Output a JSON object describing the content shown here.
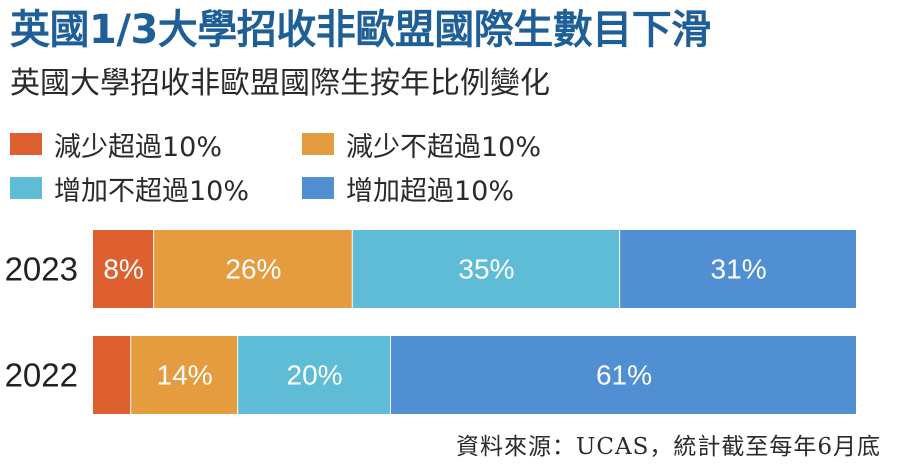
{
  "title": "英國1/3大學招收非歐盟國際生數目下滑",
  "chart_data": {
    "type": "bar",
    "orientation": "horizontal",
    "stacked": true,
    "subtitle": "英國大學招收非歐盟國際生按年比例變化",
    "categories": [
      "2023",
      "2022"
    ],
    "series": [
      {
        "name": "減少超過10%",
        "color": "#de6030",
        "values": [
          8,
          5
        ],
        "labels": [
          "8%",
          ""
        ]
      },
      {
        "name": "減少不超過10%",
        "color": "#e49c3e",
        "values": [
          26,
          14
        ],
        "labels": [
          "26%",
          "14%"
        ]
      },
      {
        "name": "增加不超過10%",
        "color": "#5fbcd6",
        "values": [
          35,
          20
        ],
        "labels": [
          "35%",
          "20%"
        ]
      },
      {
        "name": "增加超過10%",
        "color": "#4f8fd2",
        "values": [
          31,
          61
        ],
        "labels": [
          "31%",
          "61%"
        ]
      }
    ],
    "legend_position": "top",
    "grid": false
  },
  "source": "資料來源：UCAS，統計截至每年6月底"
}
